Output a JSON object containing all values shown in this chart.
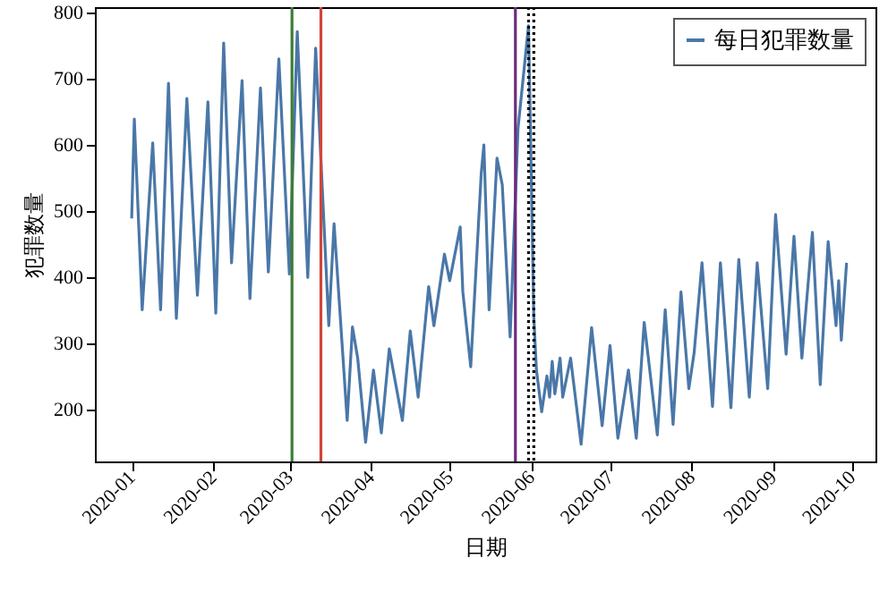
{
  "chart_data": {
    "type": "line",
    "xlabel": "日期",
    "ylabel": "犯罪数量",
    "x": [
      "2020-01-01",
      "2020-01-02",
      "2020-01-05",
      "2020-01-09",
      "2020-01-12",
      "2020-01-15",
      "2020-01-18",
      "2020-01-22",
      "2020-01-26",
      "2020-01-30",
      "2020-02-02",
      "2020-02-05",
      "2020-02-08",
      "2020-02-12",
      "2020-02-15",
      "2020-02-19",
      "2020-02-22",
      "2020-02-26",
      "2020-03-01",
      "2020-03-04",
      "2020-03-08",
      "2020-03-11",
      "2020-03-16",
      "2020-03-18",
      "2020-03-23",
      "2020-03-25",
      "2020-03-27",
      "2020-03-30",
      "2020-04-02",
      "2020-04-05",
      "2020-04-08",
      "2020-04-13",
      "2020-04-16",
      "2020-04-19",
      "2020-04-23",
      "2020-04-25",
      "2020-04-29",
      "2020-05-01",
      "2020-05-05",
      "2020-05-06",
      "2020-05-09",
      "2020-05-13",
      "2020-05-14",
      "2020-05-16",
      "2020-05-19",
      "2020-05-21",
      "2020-05-24",
      "2020-05-27",
      "2020-05-31",
      "2020-06-02",
      "2020-06-03",
      "2020-06-05",
      "2020-06-07",
      "2020-06-08",
      "2020-06-09",
      "2020-06-10",
      "2020-06-12",
      "2020-06-13",
      "2020-06-16",
      "2020-06-20",
      "2020-06-24",
      "2020-06-28",
      "2020-07-01",
      "2020-07-04",
      "2020-07-08",
      "2020-07-11",
      "2020-07-14",
      "2020-07-19",
      "2020-07-22",
      "2020-07-25",
      "2020-07-28",
      "2020-07-31",
      "2020-08-02",
      "2020-08-05",
      "2020-08-09",
      "2020-08-12",
      "2020-08-16",
      "2020-08-19",
      "2020-08-23",
      "2020-08-26",
      "2020-08-30",
      "2020-09-02",
      "2020-09-06",
      "2020-09-09",
      "2020-09-12",
      "2020-09-16",
      "2020-09-19",
      "2020-09-22",
      "2020-09-25",
      "2020-09-26",
      "2020-09-27",
      "2020-09-29"
    ],
    "series": [
      {
        "name": "每日犯罪数量",
        "color": "#4a77a8",
        "values": [
          489,
          639,
          351,
          603,
          351,
          693,
          338,
          670,
          373,
          665,
          346,
          754,
          422,
          697,
          368,
          686,
          408,
          730,
          405,
          771,
          400,
          746,
          327,
          481,
          184,
          325,
          278,
          151,
          260,
          165,
          292,
          184,
          319,
          219,
          386,
          327,
          435,
          395,
          476,
          378,
          265,
          557,
          600,
          351,
          580,
          540,
          310,
          625,
          780,
          341,
          260,
          197,
          251,
          219,
          273,
          224,
          278,
          219,
          278,
          148,
          324,
          176,
          297,
          157,
          260,
          157,
          332,
          162,
          351,
          178,
          378,
          232,
          286,
          422,
          205,
          422,
          203,
          427,
          219,
          422,
          232,
          495,
          284,
          462,
          278,
          468,
          238,
          454,
          327,
          395,
          305,
          422
        ]
      }
    ],
    "xlim": [
      "2019-12-18",
      "2020-10-10"
    ],
    "xticks": [
      {
        "value": "2020-01-01",
        "label": "2020-01"
      },
      {
        "value": "2020-02-01",
        "label": "2020-02"
      },
      {
        "value": "2020-03-01",
        "label": "2020-03"
      },
      {
        "value": "2020-04-01",
        "label": "2020-04"
      },
      {
        "value": "2020-05-01",
        "label": "2020-05"
      },
      {
        "value": "2020-06-01",
        "label": "2020-06"
      },
      {
        "value": "2020-07-01",
        "label": "2020-07"
      },
      {
        "value": "2020-08-01",
        "label": "2020-08"
      },
      {
        "value": "2020-09-01",
        "label": "2020-09"
      },
      {
        "value": "2020-10-01",
        "label": "2020-10"
      }
    ],
    "ylim": [
      122,
      808
    ],
    "yticks": [
      200,
      300,
      400,
      500,
      600,
      700,
      800
    ],
    "ref_lines": [
      {
        "axis": "x",
        "value": "2020-03-02",
        "color": "#3d7d35",
        "line_style": "solid"
      },
      {
        "axis": "x",
        "value": "2020-03-13",
        "color": "#d0463a",
        "line_style": "solid"
      },
      {
        "axis": "x",
        "value": "2020-05-26",
        "color": "#6b2d7b",
        "line_style": "solid"
      },
      {
        "axis": "x",
        "value": "2020-05-31",
        "color": "#000000",
        "line_style": "dotted"
      },
      {
        "axis": "x",
        "value": "2020-06-02",
        "color": "#000000",
        "line_style": "dotted"
      }
    ],
    "grid": false,
    "legend": "top right",
    "marker": "none",
    "line_style": "solid"
  }
}
